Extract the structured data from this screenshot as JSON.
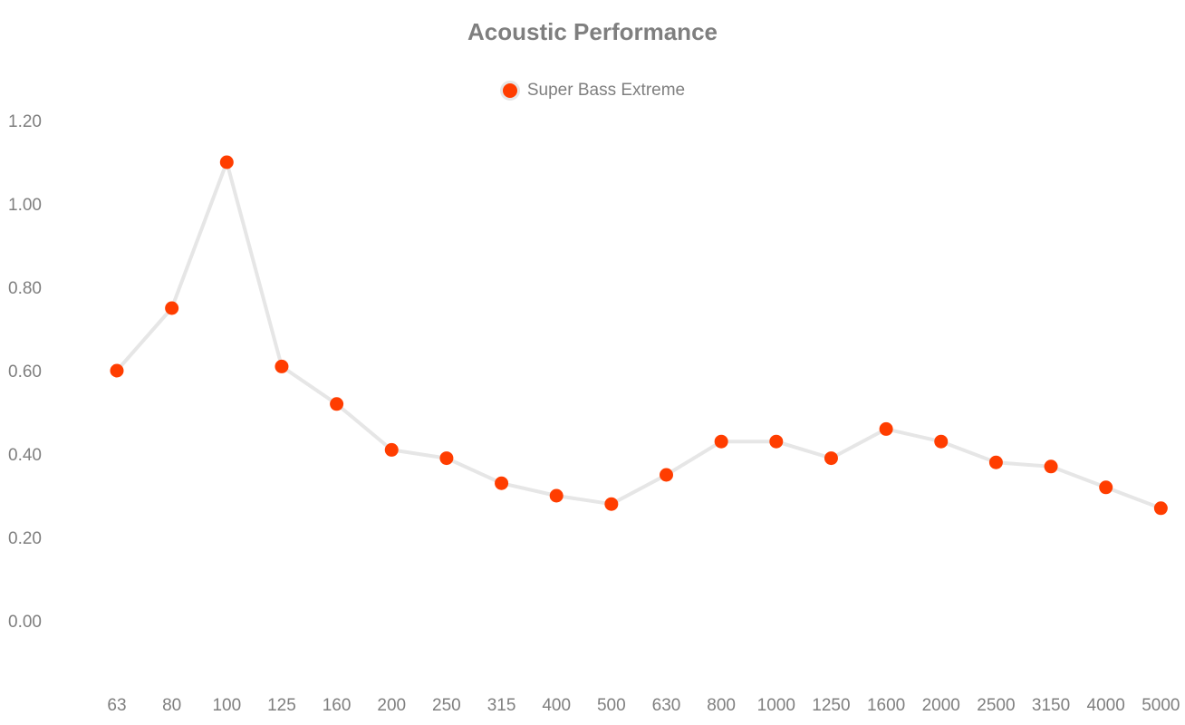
{
  "chart_data": {
    "type": "line",
    "title": "Acoustic Performance",
    "xlabel": "",
    "ylabel": "",
    "categories": [
      "63",
      "80",
      "100",
      "125",
      "160",
      "200",
      "250",
      "315",
      "400",
      "500",
      "630",
      "800",
      "1000",
      "1250",
      "1600",
      "2000",
      "2500",
      "3150",
      "4000",
      "5000"
    ],
    "series": [
      {
        "name": "Super Bass Extreme",
        "values": [
          0.6,
          0.75,
          1.1,
          0.61,
          0.52,
          0.41,
          0.39,
          0.33,
          0.3,
          0.28,
          0.35,
          0.43,
          0.43,
          0.39,
          0.46,
          0.43,
          0.38,
          0.37,
          0.32,
          0.27
        ]
      }
    ],
    "yticks": [
      "0.00",
      "0.20",
      "0.40",
      "0.60",
      "0.80",
      "1.00",
      "1.20"
    ],
    "ytick_values": [
      0,
      0.2,
      0.4,
      0.6,
      0.8,
      1.0,
      1.2
    ],
    "ylim": [
      -0.12,
      1.3
    ],
    "grid": false,
    "legend_position": "top-center",
    "colors": {
      "marker": "#ff3d00",
      "line": "#e6e6e6",
      "text": "#7f7f7f"
    }
  }
}
